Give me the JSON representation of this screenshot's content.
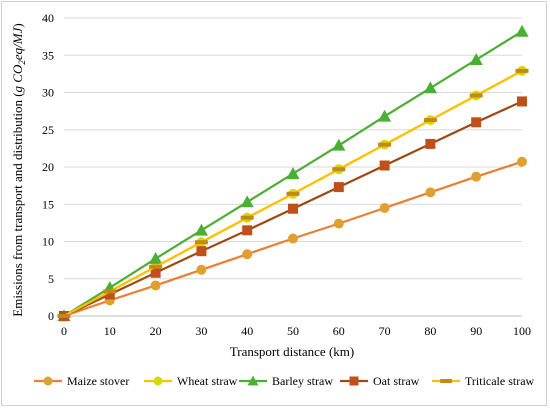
{
  "chart_data": {
    "type": "line",
    "title": "",
    "xlabel": "Transport distance (km)",
    "ylabel": "Emissions from transport and distribution (g CO2eq/MJ)",
    "ylabel_parts": {
      "prefix": "Emissions from transport and distribution (",
      "g": "g ",
      "co": "CO",
      "sub": "2",
      "rest": "eq/MJ",
      "close": ")"
    },
    "x": [
      0,
      10,
      20,
      30,
      40,
      50,
      60,
      70,
      80,
      90,
      100
    ],
    "xlim": [
      0,
      100
    ],
    "ylim": [
      0,
      40
    ],
    "x_ticks": [
      0,
      10,
      20,
      30,
      40,
      50,
      60,
      70,
      80,
      90,
      100
    ],
    "y_ticks": [
      0,
      5,
      10,
      15,
      20,
      25,
      30,
      35,
      40
    ],
    "grid": "horizontal",
    "legend_position": "bottom",
    "series": [
      {
        "name": "Maize stover",
        "color": "#ed7d31",
        "marker_color": "#e0a030",
        "marker": "circle",
        "values": [
          0,
          2.1,
          4.1,
          6.2,
          8.3,
          10.4,
          12.4,
          14.5,
          16.6,
          18.7,
          20.7
        ]
      },
      {
        "name": "Wheat straw",
        "color": "#ffc000",
        "marker_color": "#d8d800",
        "marker": "circle",
        "values": [
          0,
          3.3,
          6.6,
          9.9,
          13.2,
          16.4,
          19.7,
          23.0,
          26.3,
          29.6,
          32.9
        ]
      },
      {
        "name": "Barley straw",
        "color": "#4caf35",
        "marker_color": "#4caf35",
        "marker": "triangle",
        "values": [
          0,
          3.8,
          7.7,
          11.5,
          15.3,
          19.1,
          22.9,
          26.8,
          30.6,
          34.4,
          38.2
        ]
      },
      {
        "name": "Oat straw",
        "color": "#9c4a12",
        "marker_color": "#c0501a",
        "marker": "square",
        "values": [
          0,
          2.9,
          5.8,
          8.7,
          11.5,
          14.4,
          17.3,
          20.2,
          23.1,
          26.0,
          28.8
        ]
      },
      {
        "name": "Triticale straw",
        "color": "#ffc000",
        "marker_color": "#c08a1a",
        "marker": "dash",
        "values": [
          0,
          3.3,
          6.6,
          9.9,
          13.2,
          16.4,
          19.7,
          23.0,
          26.3,
          29.6,
          32.9
        ]
      }
    ]
  }
}
